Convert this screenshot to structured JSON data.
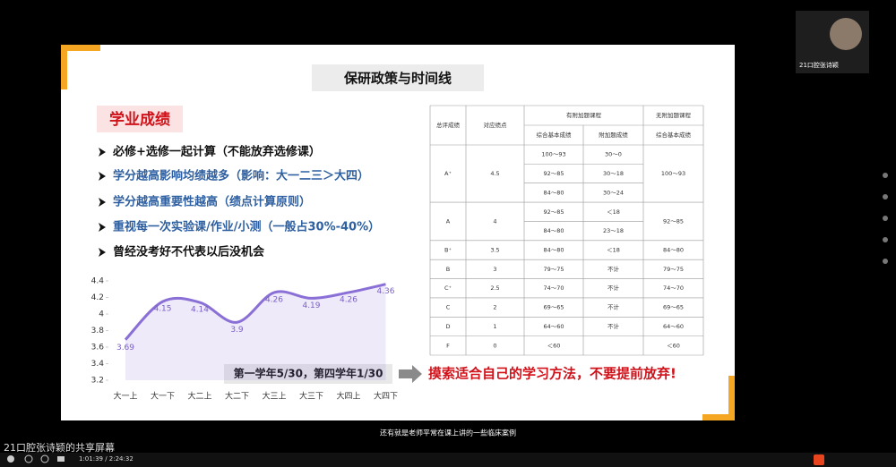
{
  "webcam": {
    "name": "21口腔张诗颖"
  },
  "slide": {
    "title": "保研政策与时间线",
    "section": "学业成绩",
    "bullets": [
      "必修+选修一起计算（不能放弃选修课）",
      "学分越高影响均绩越多（影响：大一二三＞大四）",
      "学分越高重要性越高（绩点计算原则）",
      "重视每一次实验课/作业/小测（一般占30%-40%）",
      "曾经没考好不代表以后没机会"
    ],
    "note": "第一学年5/30，第四学年1/30",
    "conclusion": "摸索适合自己的学习方法，不要提前放弃!"
  },
  "chart_data": {
    "type": "line",
    "categories": [
      "大一上",
      "大一下",
      "大二上",
      "大二下",
      "大三上",
      "大三下",
      "大四上",
      "大四下"
    ],
    "values": [
      3.69,
      4.15,
      4.14,
      3.9,
      4.26,
      4.19,
      4.26,
      4.36
    ],
    "color": "#8a6fd6",
    "ylim": [
      3.2,
      4.4
    ],
    "yticks": [
      3.2,
      3.4,
      3.6,
      3.8,
      4,
      4.2,
      4.4
    ],
    "grid": false
  },
  "table": {
    "headers": [
      "总评成绩",
      "对应绩点",
      "有附加题课程",
      "无附加题课程"
    ],
    "subheaders": [
      "综合基本成绩",
      "附加题成绩",
      "综合基本成绩"
    ],
    "rows": [
      {
        "grade": "A⁺",
        "gpa": "4.5",
        "with_extra": [
          [
            "100～93",
            "30～0"
          ],
          [
            "92～85",
            "30～18"
          ],
          [
            "84～80",
            "30～24"
          ]
        ],
        "without_extra": "100～93"
      },
      {
        "grade": "A",
        "gpa": "4",
        "with_extra": [
          [
            "92～85",
            "＜18"
          ],
          [
            "84～80",
            "23～18"
          ]
        ],
        "without_extra": "92～85"
      },
      {
        "grade": "B⁺",
        "gpa": "3.5",
        "with_extra": [
          [
            "84～80",
            "＜18"
          ]
        ],
        "without_extra": "84～80"
      },
      {
        "grade": "B",
        "gpa": "3",
        "with_extra": [
          [
            "79～75",
            "不计"
          ]
        ],
        "without_extra": "79～75"
      },
      {
        "grade": "C⁺",
        "gpa": "2.5",
        "with_extra": [
          [
            "74～70",
            "不计"
          ]
        ],
        "without_extra": "74～70"
      },
      {
        "grade": "C",
        "gpa": "2",
        "with_extra": [
          [
            "69～65",
            "不计"
          ]
        ],
        "without_extra": "69～65"
      },
      {
        "grade": "D",
        "gpa": "1",
        "with_extra": [
          [
            "64～60",
            "不计"
          ]
        ],
        "without_extra": "64～60"
      },
      {
        "grade": "F",
        "gpa": "0",
        "with_extra": [
          [
            "＜60"
          ]
        ],
        "without_extra": "＜60"
      }
    ]
  },
  "player": {
    "subtitle": "还有就是老师平常在课上讲的一些临床案例",
    "share_label": "21口腔张诗颖的共享屏幕",
    "time": "1:01:39 / 2:24:32"
  }
}
